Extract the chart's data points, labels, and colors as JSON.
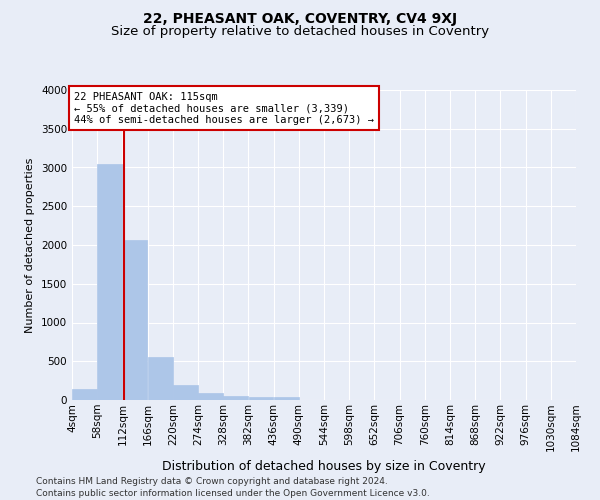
{
  "title": "22, PHEASANT OAK, COVENTRY, CV4 9XJ",
  "subtitle": "Size of property relative to detached houses in Coventry",
  "xlabel": "Distribution of detached houses by size in Coventry",
  "ylabel": "Number of detached properties",
  "bar_color": "#adc6e8",
  "bar_edgecolor": "#adc6e8",
  "marker_line_color": "#cc0000",
  "marker_value": 115,
  "annotation_text": "22 PHEASANT OAK: 115sqm\n← 55% of detached houses are smaller (3,339)\n44% of semi-detached houses are larger (2,673) →",
  "annotation_box_color": "#cc0000",
  "footer1": "Contains HM Land Registry data © Crown copyright and database right 2024.",
  "footer2": "Contains public sector information licensed under the Open Government Licence v3.0.",
  "bins": [
    4,
    58,
    112,
    166,
    220,
    274,
    328,
    382,
    436,
    490,
    544,
    598,
    652,
    706,
    760,
    814,
    868,
    922,
    976,
    1030,
    1084
  ],
  "bar_heights": [
    140,
    3050,
    2070,
    555,
    200,
    85,
    55,
    40,
    40,
    0,
    0,
    0,
    0,
    0,
    0,
    0,
    0,
    0,
    0,
    0
  ],
  "ylim": [
    0,
    4000
  ],
  "yticks": [
    0,
    500,
    1000,
    1500,
    2000,
    2500,
    3000,
    3500,
    4000
  ],
  "background_color": "#e8edf7",
  "plot_background_color": "#e8edf7",
  "grid_color": "#ffffff",
  "title_fontsize": 10,
  "subtitle_fontsize": 9.5,
  "xlabel_fontsize": 9,
  "ylabel_fontsize": 8,
  "tick_fontsize": 7.5,
  "annotation_fontsize": 7.5,
  "footer_fontsize": 6.5
}
